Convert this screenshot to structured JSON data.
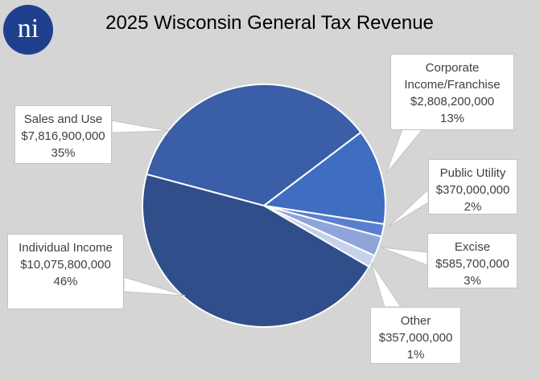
{
  "logo": "ni",
  "chart_data": {
    "type": "pie",
    "title": "2025 Wisconsin General Tax Revenue",
    "categories": [
      "Sales and Use",
      "Corporate Income/Franchise",
      "Public Utility",
      "Excise",
      "Other",
      "Individual Income"
    ],
    "values": [
      7816900000,
      2808200000,
      370000000,
      585700000,
      357000000,
      10075800000
    ],
    "value_labels": [
      "$7,816,900,000",
      "$2,808,200,000",
      "$370,000,000",
      "$585,700,000",
      "$357,000,000",
      "$10,075,800,000"
    ],
    "percent_labels": [
      "35%",
      "13%",
      "2%",
      "3%",
      "1%",
      "46%"
    ],
    "colors": [
      "#3a5ea8",
      "#3f6dc0",
      "#5a7fcf",
      "#8fa5da",
      "#c6d1ec",
      "#2f4e8a"
    ]
  }
}
